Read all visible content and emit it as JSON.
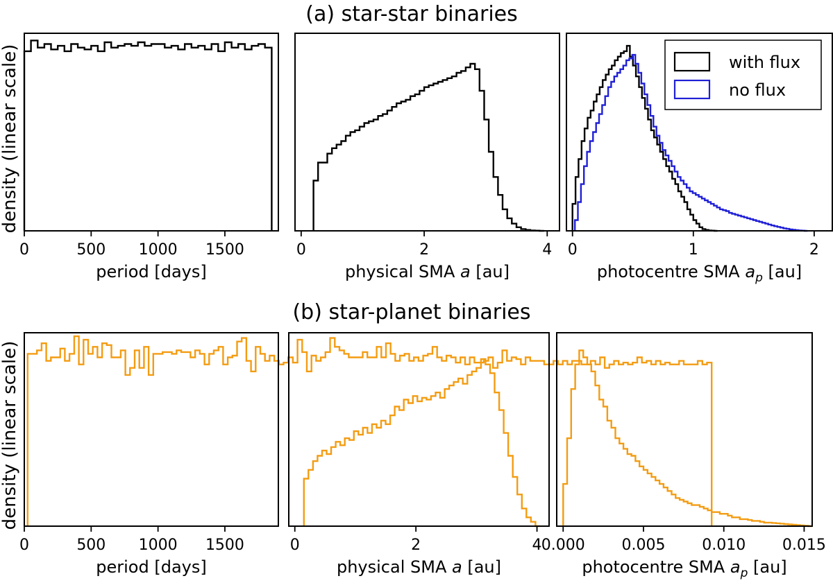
{
  "figure": {
    "row_titles": [
      "(a) star-star binaries",
      "(b) star-planet binaries"
    ],
    "ylabel": "density (linear scale)",
    "legend": {
      "entries": [
        {
          "label": "with flux",
          "color": "#000000"
        },
        {
          "label": "no flux",
          "color": "#1f1fd6"
        }
      ]
    }
  },
  "chart_data": [
    {
      "id": "a1",
      "type": "histogram",
      "row": "(a) star-star binaries",
      "xlabel": "period [days]",
      "ylabel": "density (linear scale)",
      "xlim": [
        0,
        1900
      ],
      "ylim": [
        0,
        1.1
      ],
      "xticks": [
        0,
        500,
        1000,
        1500
      ],
      "xtick_labels": [
        "0",
        "500",
        "1000",
        "1500"
      ],
      "series": [
        {
          "name": "",
          "color": "#000000",
          "bin_edges": [
            0,
            50,
            100,
            150,
            200,
            250,
            300,
            350,
            400,
            450,
            500,
            550,
            600,
            650,
            700,
            750,
            800,
            850,
            900,
            950,
            1000,
            1050,
            1100,
            1150,
            1200,
            1250,
            1300,
            1350,
            1400,
            1450,
            1500,
            1550,
            1600,
            1650,
            1700,
            1750,
            1800,
            1850
          ],
          "values": [
            1.0,
            1.06,
            1.02,
            1.04,
            1.01,
            1.03,
            1.0,
            1.04,
            1.02,
            1.01,
            1.03,
            1.0,
            1.05,
            1.02,
            1.03,
            1.04,
            1.03,
            1.05,
            1.03,
            1.04,
            1.04,
            1.02,
            1.03,
            1.01,
            1.04,
            1.02,
            1.03,
            1.01,
            1.04,
            1.0,
            1.05,
            1.02,
            1.04,
            1.01,
            1.03,
            1.04,
            1.02
          ]
        }
      ]
    },
    {
      "id": "a2",
      "type": "histogram",
      "row": "(a) star-star binaries",
      "xlabel": "physical SMA a [au]",
      "xlabel_plain": "physical SMA ",
      "xlabel_var": "a",
      "xlabel_unit": " [au]",
      "xlim": [
        -0.1,
        4.2
      ],
      "ylim": [
        0,
        1.1
      ],
      "xticks": [
        0,
        2,
        4
      ],
      "xtick_labels": [
        "0",
        "2",
        "4"
      ],
      "series": [
        {
          "name": "",
          "color": "#000000",
          "x_start": 0.2,
          "bin_width": 0.075,
          "values": [
            0.28,
            0.38,
            0.38,
            0.43,
            0.46,
            0.48,
            0.5,
            0.53,
            0.55,
            0.56,
            0.58,
            0.6,
            0.61,
            0.62,
            0.64,
            0.65,
            0.67,
            0.69,
            0.71,
            0.72,
            0.73,
            0.75,
            0.76,
            0.78,
            0.8,
            0.81,
            0.82,
            0.83,
            0.84,
            0.85,
            0.86,
            0.88,
            0.89,
            0.91,
            0.93,
            0.9,
            0.78,
            0.62,
            0.44,
            0.3,
            0.2,
            0.12,
            0.07,
            0.04,
            0.02,
            0.01,
            0.005,
            0.002,
            0.001,
            0.0
          ]
        }
      ]
    },
    {
      "id": "a3",
      "type": "histogram",
      "row": "(a) star-star binaries",
      "xlabel": "photocentre SMA a_p [au]",
      "xlabel_plain": "photocentre SMA ",
      "xlabel_var": "a",
      "xlabel_sub": "p",
      "xlabel_unit": " [au]",
      "xlim": [
        -0.05,
        2.15
      ],
      "ylim": [
        0,
        1.1
      ],
      "xticks": [
        0,
        1,
        2
      ],
      "xtick_labels": [
        "0",
        "1",
        "2"
      ],
      "series": [
        {
          "name": "with flux",
          "color": "#000000",
          "x_start": 0.0,
          "bin_width": 0.025,
          "values": [
            0.15,
            0.3,
            0.4,
            0.5,
            0.57,
            0.63,
            0.67,
            0.72,
            0.76,
            0.8,
            0.84,
            0.87,
            0.9,
            0.92,
            0.95,
            0.97,
            0.99,
            1.0,
            1.03,
            0.97,
            0.92,
            0.86,
            0.8,
            0.74,
            0.68,
            0.62,
            0.56,
            0.52,
            0.48,
            0.44,
            0.4,
            0.36,
            0.33,
            0.29,
            0.26,
            0.22,
            0.19,
            0.16,
            0.12,
            0.09,
            0.06,
            0.04,
            0.02,
            0.01,
            0.005,
            0.002,
            0.001,
            0.0
          ]
        },
        {
          "name": "no flux",
          "color": "#1f1fd6",
          "x_start": 0.02,
          "bin_width": 0.025,
          "values": [
            0.06,
            0.16,
            0.26,
            0.36,
            0.44,
            0.5,
            0.55,
            0.6,
            0.65,
            0.7,
            0.75,
            0.8,
            0.83,
            0.86,
            0.88,
            0.9,
            0.92,
            0.95,
            0.96,
            0.98,
            0.93,
            0.88,
            0.82,
            0.76,
            0.7,
            0.64,
            0.58,
            0.53,
            0.49,
            0.45,
            0.42,
            0.39,
            0.36,
            0.33,
            0.3,
            0.28,
            0.26,
            0.24,
            0.22,
            0.21,
            0.2,
            0.19,
            0.18,
            0.17,
            0.16,
            0.15,
            0.14,
            0.13,
            0.12,
            0.115,
            0.11,
            0.1,
            0.095,
            0.09,
            0.085,
            0.08,
            0.075,
            0.07,
            0.065,
            0.06,
            0.055,
            0.05,
            0.045,
            0.04,
            0.035,
            0.03,
            0.026,
            0.022,
            0.018,
            0.014,
            0.011,
            0.008,
            0.006,
            0.004,
            0.002,
            0.001,
            0.0
          ]
        }
      ]
    },
    {
      "id": "b1",
      "type": "histogram",
      "row": "(b) star-planet binaries",
      "xlabel": "period [days]",
      "ylabel": "density (linear scale)",
      "xlim": [
        0,
        1900
      ],
      "ylim": [
        0,
        1.1
      ],
      "xticks": [
        0,
        500,
        1000,
        1500
      ],
      "xtick_labels": [
        "0",
        "500",
        "1000",
        "1500"
      ],
      "series": [
        {
          "name": "",
          "color": "#f39c12",
          "x_start": 25,
          "bin_width": 34.8,
          "values": [
            0.98,
            0.98,
            1.0,
            1.04,
            0.94,
            0.96,
            0.96,
            1.01,
            0.94,
            0.98,
            1.08,
            0.92,
            1.06,
            0.98,
            1.02,
            0.96,
            1.04,
            1.03,
            0.96,
            0.96,
            1.0,
            0.86,
            0.9,
            1.0,
            0.9,
            1.02,
            0.86,
            0.98,
            0.98,
            0.99,
            0.99,
            0.98,
            1.0,
            0.99,
            0.99,
            0.96,
            1.0,
            0.98,
            0.92,
            0.98,
            1.0,
            1.02,
            0.92,
            0.96,
            0.97,
            1.05,
            1.07,
            0.94,
            0.88,
            1.02,
            0.98,
            0.94,
            0.97,
            0.94,
            0.92,
            0.93,
            0.96,
            0.93,
            1.06,
            0.99,
            0.88,
            0.97,
            0.94,
            0.96,
            0.99,
            1.07,
            1.02,
            1.0,
            0.98,
            0.96,
            0.96,
            0.96,
            0.99,
            0.96,
            0.96,
            1.02,
            0.96,
            1.04,
            0.98,
            0.94,
            0.97,
            0.98,
            0.94,
            0.96,
            0.94,
            0.97,
            0.98,
            1.02,
            0.96,
            0.94,
            0.97,
            0.96,
            0.93,
            0.96,
            0.92,
            0.96,
            0.93,
            0.93,
            0.94,
            0.96,
            0.9,
            0.93,
            1.0,
            0.94,
            0.96,
            0.95,
            0.92,
            0.96,
            0.94,
            0.94,
            0.94,
            0.92,
            0.92,
            0.94,
            0.92,
            0.94,
            0.92,
            0.94,
            0.94,
            0.92,
            0.92,
            0.94,
            0.92,
            0.96,
            0.9,
            0.92,
            0.94,
            0.92,
            0.93,
            0.92,
            0.93,
            0.96,
            0.93,
            0.94,
            0.92,
            0.94,
            0.92,
            0.93,
            0.92,
            0.92,
            0.94,
            0.92,
            0.92,
            0.92,
            0.94,
            0.92,
            0.93
          ]
        }
      ]
    },
    {
      "id": "b2",
      "type": "histogram",
      "row": "(b) star-planet binaries",
      "xlabel": "physical SMA a [au]",
      "xlabel_plain": "physical SMA ",
      "xlabel_var": "a",
      "xlabel_unit": " [au]",
      "xlim": [
        -0.1,
        4.2
      ],
      "ylim": [
        0,
        1.1
      ],
      "xticks": [
        0,
        2,
        4
      ],
      "xtick_labels": [
        "0",
        "2",
        "4"
      ],
      "series": [
        {
          "name": "",
          "color": "#f39c12",
          "x_start": 0.15,
          "bin_width": 0.075,
          "values": [
            0.27,
            0.32,
            0.37,
            0.4,
            0.43,
            0.41,
            0.45,
            0.48,
            0.46,
            0.5,
            0.49,
            0.54,
            0.52,
            0.56,
            0.53,
            0.58,
            0.56,
            0.6,
            0.58,
            0.63,
            0.68,
            0.66,
            0.72,
            0.7,
            0.74,
            0.71,
            0.73,
            0.72,
            0.74,
            0.76,
            0.73,
            0.78,
            0.8,
            0.82,
            0.84,
            0.81,
            0.86,
            0.88,
            0.9,
            0.95,
            0.92,
            0.87,
            0.76,
            0.66,
            0.53,
            0.4,
            0.28,
            0.18,
            0.1,
            0.05,
            0.025,
            0.0
          ]
        }
      ]
    },
    {
      "id": "b3",
      "type": "histogram",
      "row": "(b) star-planet binaries",
      "xlabel": "photocentre SMA a_p [au]",
      "xlabel_plain": "photocentre SMA ",
      "xlabel_var": "a",
      "xlabel_sub": "p",
      "xlabel_unit": " [au]",
      "xlim": [
        -0.0004,
        0.0155
      ],
      "ylim": [
        0,
        1.1
      ],
      "xticks": [
        0.0,
        0.005,
        0.01,
        0.015
      ],
      "xtick_labels": [
        "0.000",
        "0.005",
        "0.010",
        "0.015"
      ],
      "series": [
        {
          "name": "",
          "color": "#f39c12",
          "x_start": 0.0,
          "bin_width": 0.00025,
          "values": [
            0.24,
            0.5,
            0.78,
            0.92,
            1.0,
            0.96,
            0.92,
            0.88,
            0.8,
            0.72,
            0.68,
            0.6,
            0.56,
            0.5,
            0.47,
            0.44,
            0.41,
            0.4,
            0.37,
            0.34,
            0.32,
            0.3,
            0.28,
            0.26,
            0.24,
            0.22,
            0.2,
            0.18,
            0.16,
            0.15,
            0.14,
            0.13,
            0.12,
            0.12,
            0.11,
            0.1,
            0.09,
            0.08,
            0.08,
            0.07,
            0.07,
            0.06,
            0.05,
            0.05,
            0.04,
            0.04,
            0.035,
            0.03,
            0.03,
            0.025,
            0.02,
            0.02,
            0.018,
            0.016,
            0.014,
            0.012,
            0.01,
            0.008,
            0.006,
            0.004,
            0.002,
            0.0
          ]
        }
      ]
    }
  ]
}
